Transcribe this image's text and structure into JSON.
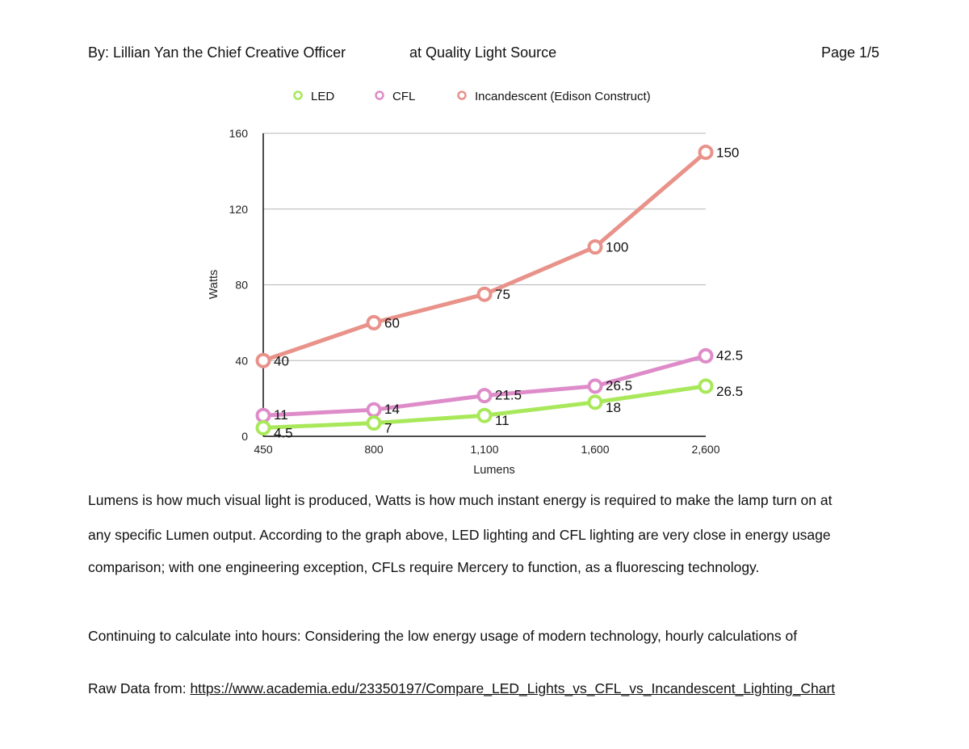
{
  "header": {
    "author": "By: Lillian Yan the Chief Creative Officer",
    "company": "at Quality Light Source",
    "page": "Page 1/5"
  },
  "paragraphs": [
    "Lumens is how much visual light is produced, Watts is how much instant energy is required to make the lamp turn on at",
    "any specific Lumen output. According to the graph above, LED lighting and CFL lighting are very close in energy usage",
    "comparison; with one engineering exception, CFLs require Mercery to function, as a fluorescing technology.",
    "Continuing to calculate into hours:  Considering the low energy usage of modern technology, hourly calculations of"
  ],
  "source": {
    "prefix": "Raw Data from: ",
    "link_text": "https://www.academia.edu/23350197/Compare_LED_Lights_vs_CFL_vs_Incandescent_Lighting_Chart"
  },
  "chart_data": {
    "type": "line",
    "title": "",
    "xlabel": "Lumens",
    "ylabel": "Watts",
    "categories": [
      "450",
      "800",
      "1,100",
      "1,600",
      "2,600"
    ],
    "ylim": [
      0,
      160
    ],
    "yticks": [
      "0",
      "40",
      "80",
      "120",
      "160"
    ],
    "grid": true,
    "legend_position": "top",
    "series": [
      {
        "name": "LED",
        "color": "#a8e85a",
        "values": [
          4.5,
          7,
          11,
          18,
          26.5
        ],
        "labels": [
          "4.5",
          "7",
          "11",
          "18",
          "26.5"
        ]
      },
      {
        "name": "CFL",
        "color": "#de8cc9",
        "values": [
          11,
          14,
          21.5,
          26.5,
          42.5
        ],
        "labels": [
          "11",
          "14",
          "21.5",
          "26.5",
          "42.5"
        ]
      },
      {
        "name": "Incandescent (Edison Construct)",
        "color": "#e8928a",
        "values": [
          40,
          60,
          75,
          100,
          150
        ],
        "labels": [
          "40",
          "60",
          "75",
          "100",
          "150"
        ]
      }
    ]
  }
}
